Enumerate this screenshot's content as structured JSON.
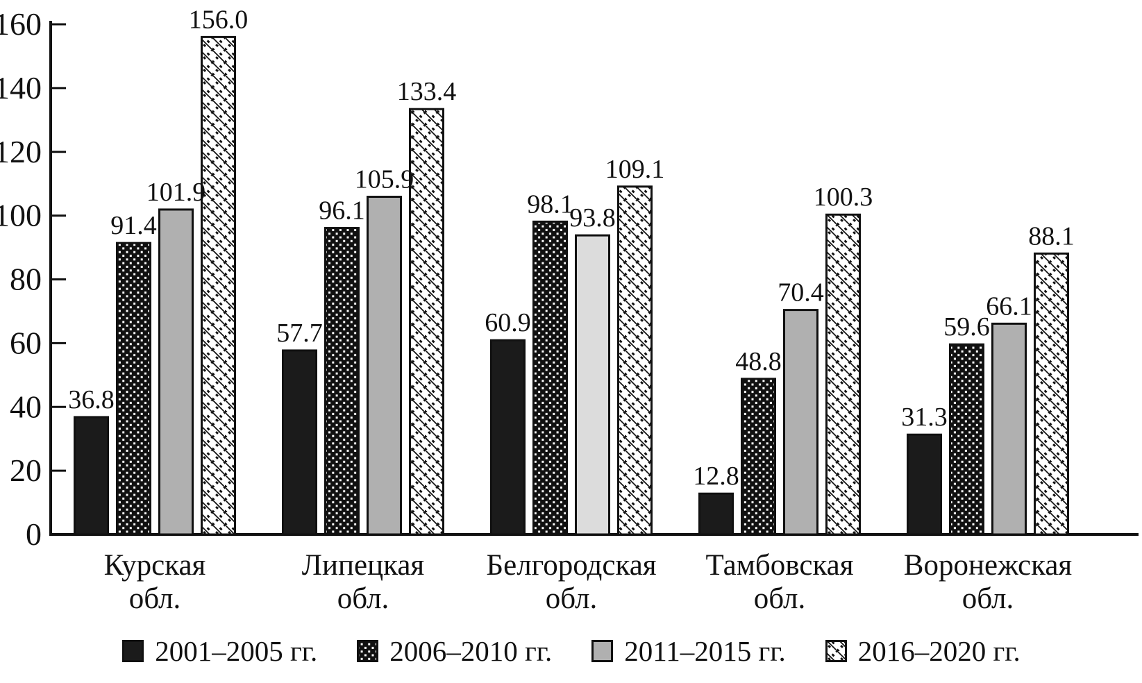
{
  "chart_data": {
    "type": "bar",
    "title": "",
    "xlabel": "",
    "ylabel": "",
    "categories": [
      "Курская обл.",
      "Липецкая обл.",
      "Белгородская обл.",
      "Тамбовская обл.",
      "Воронежская обл."
    ],
    "series": [
      {
        "name": "2001–2005 гг.",
        "pattern": "solid",
        "values": [
          36.8,
          57.7,
          60.9,
          12.8,
          31.3
        ]
      },
      {
        "name": "2006–2010 гг.",
        "pattern": "dots",
        "values": [
          91.4,
          96.1,
          98.1,
          48.8,
          59.6
        ]
      },
      {
        "name": "2011–2015 гг.",
        "pattern": "gray",
        "values": [
          101.9,
          105.9,
          93.8,
          70.4,
          66.1
        ],
        "point_colors": [
          null,
          null,
          "#dcdcdc",
          null,
          null
        ]
      },
      {
        "name": "2016–2020 гг.",
        "pattern": "hatch",
        "values": [
          156.0,
          133.4,
          109.1,
          100.3,
          88.1
        ]
      }
    ],
    "ylim": [
      0,
      160
    ],
    "yticks": [
      0,
      20,
      40,
      60,
      80,
      100,
      120,
      140,
      160
    ],
    "value_labels": true,
    "value_label_decimals": 1,
    "grid": false,
    "legend_position": "bottom"
  },
  "colors": {
    "bar_black": "#1b1b1b",
    "bar_gray": "#b0b0b0",
    "bar_gray_light": "#dcdcdc",
    "axis": "#111111",
    "text": "#111111",
    "pattern_bg": "#ffffff"
  }
}
